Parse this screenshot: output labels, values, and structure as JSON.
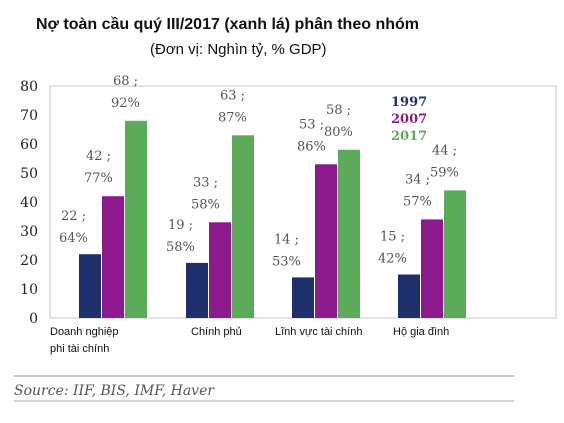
{
  "chart_data": {
    "type": "bar",
    "title": "Nợ toàn cầu quý III/2017 (xanh lá) phân theo nhóm",
    "subtitle": "(Đơn vị: Nghìn tỷ, % GDP)",
    "categories": [
      [
        "Doanh nghiệp",
        "phi tài chính"
      ],
      [
        "Chính phủ"
      ],
      [
        "Lĩnh vực tài chính"
      ],
      [
        "Hộ gia đình"
      ]
    ],
    "series": [
      {
        "name": "1997",
        "color": "#1f2f6b",
        "values": [
          22,
          19,
          14,
          15
        ],
        "labels": [
          [
            "22 ;",
            "64%"
          ],
          [
            "19 ;",
            "58%"
          ],
          [
            "14 ;",
            "53%"
          ],
          [
            "15 ;",
            "42%"
          ]
        ]
      },
      {
        "name": "2007",
        "color": "#8c1a8c",
        "values": [
          42,
          33,
          53,
          34
        ],
        "labels": [
          [
            "42 ;",
            "77%"
          ],
          [
            "33 ;",
            "58%"
          ],
          [
            "53 ;",
            "86%"
          ],
          [
            "34 ;",
            "57%"
          ]
        ]
      },
      {
        "name": "2017",
        "color": "#5cab5a",
        "values": [
          68,
          63,
          58,
          44
        ],
        "labels": [
          [
            "68 ;",
            "92%"
          ],
          [
            "63 ;",
            "87%"
          ],
          [
            "58 ;",
            "80%"
          ],
          [
            "44 ;",
            "59%"
          ]
        ]
      }
    ],
    "ylim": [
      0,
      80
    ],
    "yticks": [
      0,
      10,
      20,
      30,
      40,
      50,
      60,
      70,
      80
    ],
    "grid": false,
    "legend_position": "top-right",
    "source": "Source: IIF, BIS, IMF, Haver"
  }
}
